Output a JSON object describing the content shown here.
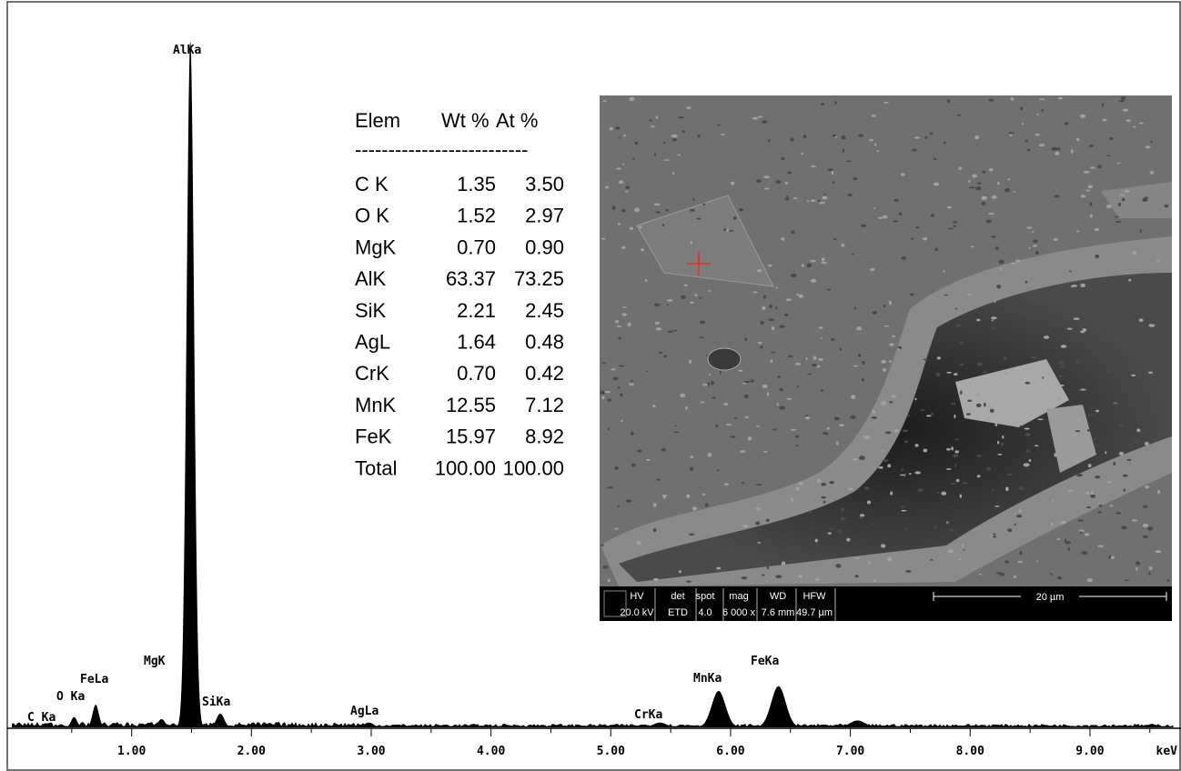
{
  "chart_data": {
    "type": "spectrum",
    "x_label": "keV",
    "xlim": [
      0,
      9.76
    ],
    "xticks": [
      {
        "value": 1,
        "label": "1.00"
      },
      {
        "value": 2,
        "label": "2.00"
      },
      {
        "value": 3,
        "label": "3.00"
      },
      {
        "value": 4,
        "label": "4.00"
      },
      {
        "value": 5,
        "label": "5.00"
      },
      {
        "value": 6,
        "label": "6.00"
      },
      {
        "value": 7,
        "label": "7.00"
      },
      {
        "value": 8,
        "label": "8.00"
      },
      {
        "value": 9,
        "label": "9.00"
      }
    ],
    "color": "#000000",
    "peaks": [
      {
        "label": "C Ka",
        "energy": 0.28,
        "height": 0.6
      },
      {
        "label": "O Ka",
        "energy": 0.52,
        "height": 1.5
      },
      {
        "label": "FeLa",
        "energy": 0.7,
        "height": 3.3
      },
      {
        "label": "MgK",
        "energy": 1.25,
        "height": 1.2
      },
      {
        "label": "AlKa",
        "energy": 1.49,
        "height": 100
      },
      {
        "label": "SiKa",
        "energy": 1.74,
        "height": 2
      },
      {
        "label": "AgLa",
        "energy": 2.98,
        "height": 0.7
      },
      {
        "label": "CrKa",
        "energy": 5.41,
        "height": 0.7
      },
      {
        "label": "MnKa",
        "energy": 5.9,
        "height": 5.3
      },
      {
        "label": "FeKa",
        "energy": 6.4,
        "height": 6
      },
      {
        "label": null,
        "energy": 7.06,
        "height": 1
      }
    ]
  },
  "composition_table": {
    "header": [
      "Elem",
      "Wt %",
      "At %"
    ],
    "separator": "--------------------------",
    "rows": [
      [
        "C K",
        "1.35",
        "3.50"
      ],
      [
        "O K",
        "1.52",
        "2.97"
      ],
      [
        "MgK",
        "0.70",
        "0.90"
      ],
      [
        "AlK",
        "63.37",
        "73.25"
      ],
      [
        "SiK",
        "2.21",
        "2.45"
      ],
      [
        "AgL",
        "1.64",
        "0.48"
      ],
      [
        "CrK",
        "0.70",
        "0.42"
      ],
      [
        "MnK",
        "12.55",
        "7.12"
      ],
      [
        "FeK",
        "15.97",
        "8.92"
      ],
      [
        "Total",
        "100.00",
        "100.00"
      ]
    ]
  },
  "sem_image": {
    "info_bar": {
      "labels": [
        "HV",
        "det",
        "spot",
        "mag",
        "WD",
        "HFW"
      ],
      "values": [
        "20.0 kV",
        "ETD",
        "4.0",
        "6 000 x",
        "7.6 mm",
        "49.7 µm"
      ]
    },
    "scale_bar": "20 µm"
  }
}
